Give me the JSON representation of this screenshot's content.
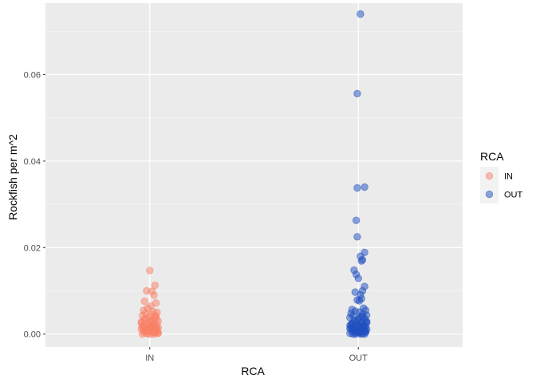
{
  "chart_data": {
    "type": "scatter",
    "xlabel": "RCA",
    "ylabel": "Rockfish per m^2",
    "categories": [
      "IN",
      "OUT"
    ],
    "ylim": [
      -0.003,
      0.0765
    ],
    "yticks": [
      0.0,
      0.02,
      0.04,
      0.06
    ],
    "ytick_labels": [
      "0.00",
      "0.02",
      "0.04",
      "0.06"
    ],
    "grid": true,
    "legend": {
      "title": "RCA",
      "position": "right",
      "entries": [
        {
          "label": "IN",
          "color": "#FA8066"
        },
        {
          "label": "OUT",
          "color": "#2050C0"
        }
      ]
    },
    "series": [
      {
        "name": "IN",
        "category": "IN",
        "color": "#FA8066",
        "values": [
          0.0147,
          0.0113,
          0.0099,
          0.01,
          0.009,
          0.0076,
          0.0072,
          0.0065,
          0.006,
          0.0055,
          0.0052,
          0.005,
          0.0048,
          0.0045,
          0.0043,
          0.004,
          0.0038,
          0.0036,
          0.0034,
          0.0032,
          0.003,
          0.0028,
          0.0027,
          0.0025,
          0.0024,
          0.0022,
          0.0021,
          0.002,
          0.0019,
          0.0018,
          0.0017,
          0.0016,
          0.0015,
          0.0014,
          0.0013,
          0.0012,
          0.0011,
          0.001,
          0.0009,
          0.0008,
          0.0007,
          0.0006,
          0.0005,
          0.0004,
          0.0003,
          0.0002,
          0.0001,
          0.0,
          0.0,
          0.0,
          0.0035,
          0.0042,
          0.0026,
          0.0018,
          0.0011,
          0.0007,
          0.0004,
          0.0002,
          0.0015,
          0.0031
        ],
        "jitter": [
          0.0,
          0.25,
          0.1,
          -0.15,
          0.2,
          -0.25,
          0.3,
          0.05,
          -0.1,
          -0.3,
          0.15,
          0.35,
          -0.2,
          0.05,
          -0.35,
          0.25,
          -0.05,
          0.3,
          -0.25,
          0.1,
          0.4,
          -0.4,
          0.0,
          0.2,
          -0.15,
          0.35,
          -0.3,
          0.1,
          -0.05,
          0.25,
          -0.35,
          0.15,
          0.4,
          -0.2,
          0.05,
          -0.4,
          0.3,
          -0.1,
          0.2,
          -0.25,
          0.35,
          0.0,
          -0.3,
          0.15,
          0.4,
          -0.15,
          0.25,
          -0.05,
          0.1,
          -0.35,
          -0.2,
          0.3,
          -0.4,
          0.05,
          0.35,
          -0.1,
          0.2,
          0.4,
          -0.3,
          0.1
        ]
      },
      {
        "name": "OUT",
        "category": "OUT",
        "color": "#2050C0",
        "values": [
          0.074,
          0.0556,
          0.0338,
          0.034,
          0.0263,
          0.0225,
          0.0189,
          0.018,
          0.0172,
          0.0169,
          0.0148,
          0.0138,
          0.0129,
          0.011,
          0.01,
          0.0097,
          0.0091,
          0.0082,
          0.0079,
          0.0077,
          0.006,
          0.0057,
          0.0055,
          0.0053,
          0.0051,
          0.0048,
          0.0046,
          0.0044,
          0.0042,
          0.004,
          0.0038,
          0.0036,
          0.0034,
          0.0032,
          0.003,
          0.0028,
          0.0027,
          0.0026,
          0.0024,
          0.0023,
          0.0022,
          0.0021,
          0.002,
          0.0019,
          0.0018,
          0.0017,
          0.0016,
          0.0015,
          0.0014,
          0.0013,
          0.0012,
          0.0011,
          0.001,
          0.0009,
          0.0008,
          0.0007,
          0.0006,
          0.0005,
          0.0004,
          0.0003,
          0.0002,
          0.0001,
          0.0,
          0.0,
          0.0,
          0.0,
          0.0035,
          0.0029,
          0.0022,
          0.0016,
          0.0012,
          0.0008,
          0.0005,
          0.0003,
          0.0018,
          0.0025,
          0.0041,
          0.0013,
          0.0009,
          0.0006
        ],
        "jitter": [
          0.1,
          -0.05,
          -0.05,
          0.3,
          -0.1,
          -0.05,
          0.3,
          0.1,
          0.2,
          0.15,
          -0.2,
          -0.1,
          0.0,
          0.3,
          0.2,
          -0.15,
          0.1,
          0.15,
          -0.05,
          0.05,
          0.25,
          -0.3,
          0.35,
          -0.15,
          0.05,
          -0.35,
          0.2,
          0.4,
          -0.25,
          0.1,
          -0.4,
          0.3,
          0.0,
          -0.2,
          0.35,
          -0.1,
          0.15,
          0.4,
          -0.3,
          0.25,
          -0.05,
          0.05,
          -0.4,
          0.3,
          -0.15,
          0.2,
          0.35,
          -0.25,
          0.1,
          -0.35,
          0.0,
          0.4,
          -0.2,
          0.25,
          -0.1,
          0.15,
          -0.3,
          0.35,
          -0.05,
          0.05,
          -0.4,
          0.2,
          0.3,
          -0.15,
          0.1,
          -0.25,
          0.0,
          0.4,
          -0.35,
          0.15,
          0.25,
          -0.2,
          0.35,
          -0.1,
          0.05,
          -0.3,
          0.2,
          -0.4,
          0.3,
          0.1
        ]
      }
    ]
  }
}
